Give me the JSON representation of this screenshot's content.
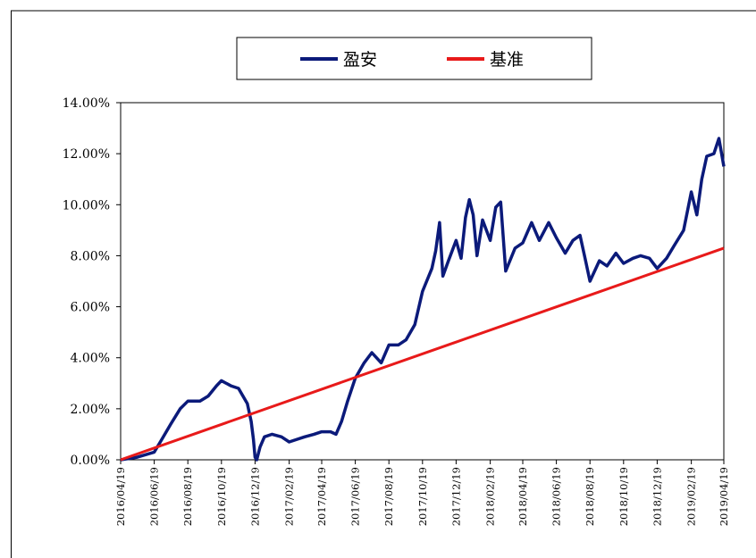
{
  "chart_data": {
    "type": "line",
    "title": "",
    "xlabel": "",
    "ylabel": "",
    "ylim": [
      0,
      14
    ],
    "y_ticks": [
      "0.00%",
      "2.00%",
      "4.00%",
      "6.00%",
      "8.00%",
      "10.00%",
      "12.00%",
      "14.00%"
    ],
    "x_ticks": [
      "2016/04/19",
      "2016/06/19",
      "2016/08/19",
      "2016/10/19",
      "2016/12/19",
      "2017/02/19",
      "2017/04/19",
      "2017/06/19",
      "2017/08/19",
      "2017/10/19",
      "2017/12/19",
      "2018/02/19",
      "2018/04/19",
      "2018/06/19",
      "2018/08/19",
      "2018/10/19",
      "2018/12/19",
      "2019/02/19",
      "2019/04/19"
    ],
    "legend_position": "top",
    "grid": false,
    "series": [
      {
        "name": "盈安",
        "color": "#0b1a7a",
        "points": [
          [
            "2016/04/19",
            0.0
          ],
          [
            "2016/05/19",
            0.1
          ],
          [
            "2016/06/19",
            0.3
          ],
          [
            "2016/06/30",
            0.7
          ],
          [
            "2016/07/19",
            1.4
          ],
          [
            "2016/08/05",
            2.0
          ],
          [
            "2016/08/19",
            2.3
          ],
          [
            "2016/09/10",
            2.3
          ],
          [
            "2016/09/25",
            2.5
          ],
          [
            "2016/10/10",
            2.9
          ],
          [
            "2016/10/19",
            3.1
          ],
          [
            "2016/11/05",
            2.9
          ],
          [
            "2016/11/19",
            2.8
          ],
          [
            "2016/12/05",
            2.2
          ],
          [
            "2016/12/12",
            1.5
          ],
          [
            "2016/12/16",
            0.8
          ],
          [
            "2016/12/19",
            0.1
          ],
          [
            "2016/12/22",
            0.0
          ],
          [
            "2016/12/28",
            0.5
          ],
          [
            "2017/01/05",
            0.9
          ],
          [
            "2017/01/19",
            1.0
          ],
          [
            "2017/02/05",
            0.9
          ],
          [
            "2017/02/19",
            0.7
          ],
          [
            "2017/03/05",
            0.8
          ],
          [
            "2017/03/19",
            0.9
          ],
          [
            "2017/04/05",
            1.0
          ],
          [
            "2017/04/19",
            1.1
          ],
          [
            "2017/05/05",
            1.1
          ],
          [
            "2017/05/15",
            1.0
          ],
          [
            "2017/05/25",
            1.5
          ],
          [
            "2017/06/05",
            2.3
          ],
          [
            "2017/06/19",
            3.2
          ],
          [
            "2017/07/05",
            3.8
          ],
          [
            "2017/07/19",
            4.2
          ],
          [
            "2017/08/05",
            3.8
          ],
          [
            "2017/08/19",
            4.5
          ],
          [
            "2017/09/05",
            4.5
          ],
          [
            "2017/09/19",
            4.7
          ],
          [
            "2017/10/05",
            5.3
          ],
          [
            "2017/10/19",
            6.6
          ],
          [
            "2017/11/05",
            7.5
          ],
          [
            "2017/11/12",
            8.2
          ],
          [
            "2017/11/19",
            9.3
          ],
          [
            "2017/11/25",
            7.2
          ],
          [
            "2017/12/05",
            7.8
          ],
          [
            "2017/12/19",
            8.6
          ],
          [
            "2017/12/28",
            7.9
          ],
          [
            "2018/01/05",
            9.5
          ],
          [
            "2018/01/12",
            10.2
          ],
          [
            "2018/01/19",
            9.6
          ],
          [
            "2018/01/26",
            8.0
          ],
          [
            "2018/02/05",
            9.4
          ],
          [
            "2018/02/19",
            8.6
          ],
          [
            "2018/03/01",
            9.9
          ],
          [
            "2018/03/10",
            10.1
          ],
          [
            "2018/03/19",
            7.4
          ],
          [
            "2018/04/05",
            8.3
          ],
          [
            "2018/04/19",
            8.5
          ],
          [
            "2018/05/05",
            9.3
          ],
          [
            "2018/05/19",
            8.6
          ],
          [
            "2018/06/05",
            9.3
          ],
          [
            "2018/06/19",
            8.7
          ],
          [
            "2018/07/05",
            8.1
          ],
          [
            "2018/07/19",
            8.6
          ],
          [
            "2018/08/01",
            8.8
          ],
          [
            "2018/08/10",
            7.9
          ],
          [
            "2018/08/19",
            7.0
          ],
          [
            "2018/09/05",
            7.8
          ],
          [
            "2018/09/19",
            7.6
          ],
          [
            "2018/10/05",
            8.1
          ],
          [
            "2018/10/19",
            7.7
          ],
          [
            "2018/11/05",
            7.9
          ],
          [
            "2018/11/19",
            8.0
          ],
          [
            "2018/12/05",
            7.9
          ],
          [
            "2018/12/19",
            7.5
          ],
          [
            "2019/01/05",
            7.9
          ],
          [
            "2019/01/19",
            8.4
          ],
          [
            "2019/02/05",
            9.0
          ],
          [
            "2019/02/19",
            10.5
          ],
          [
            "2019/03/01",
            9.6
          ],
          [
            "2019/03/10",
            11.0
          ],
          [
            "2019/03/19",
            11.9
          ],
          [
            "2019/04/01",
            12.0
          ],
          [
            "2019/04/10",
            12.6
          ],
          [
            "2019/04/19",
            11.5
          ]
        ]
      },
      {
        "name": "基准",
        "color": "#e81a1a",
        "points": [
          [
            "2016/04/19",
            0.0
          ],
          [
            "2019/04/19",
            8.3
          ]
        ]
      }
    ]
  }
}
